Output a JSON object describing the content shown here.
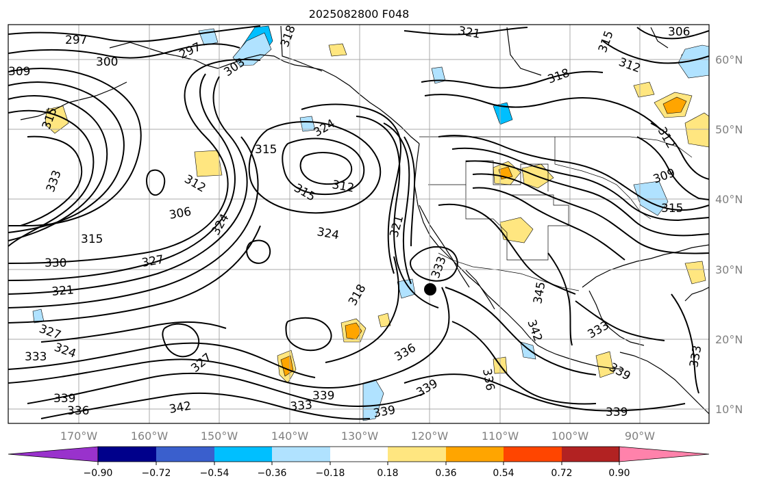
{
  "title": "2025082800 F048",
  "map": {
    "lon_labels": [
      "170°W",
      "160°W",
      "150°W",
      "140°W",
      "130°W",
      "120°W",
      "110°W",
      "100°W",
      "90°W"
    ],
    "lat_labels": [
      "60°N",
      "50°N",
      "40°N",
      "30°N",
      "20°N",
      "10°N"
    ],
    "contour_labels": [
      "297",
      "300",
      "297",
      "303",
      "318",
      "321",
      "315",
      "312",
      "306",
      "309",
      "315",
      "333",
      "312",
      "306",
      "315",
      "330",
      "327",
      "321",
      "327",
      "324",
      "333",
      "339",
      "336",
      "342",
      "315",
      "324",
      "315",
      "312",
      "324",
      "318",
      "321",
      "327",
      "339",
      "333",
      "339",
      "333",
      "336",
      "339",
      "345",
      "342",
      "336",
      "339",
      "333",
      "339",
      "333",
      "312",
      "315",
      "318",
      "309",
      "324"
    ],
    "marker": "point"
  },
  "colorbar": {
    "colors": [
      "#9932cc",
      "#00008b",
      "#3a5fcd",
      "#00bfff",
      "#b0e2ff",
      "#ffffff",
      "#ffe680",
      "#ffa500",
      "#ff4500",
      "#b22222",
      "#ff82ab"
    ],
    "tick_labels": [
      "−0.90",
      "−0.72",
      "−0.54",
      "−0.36",
      "−0.18",
      "0.18",
      "0.36",
      "0.54",
      "0.72",
      "0.90"
    ]
  }
}
